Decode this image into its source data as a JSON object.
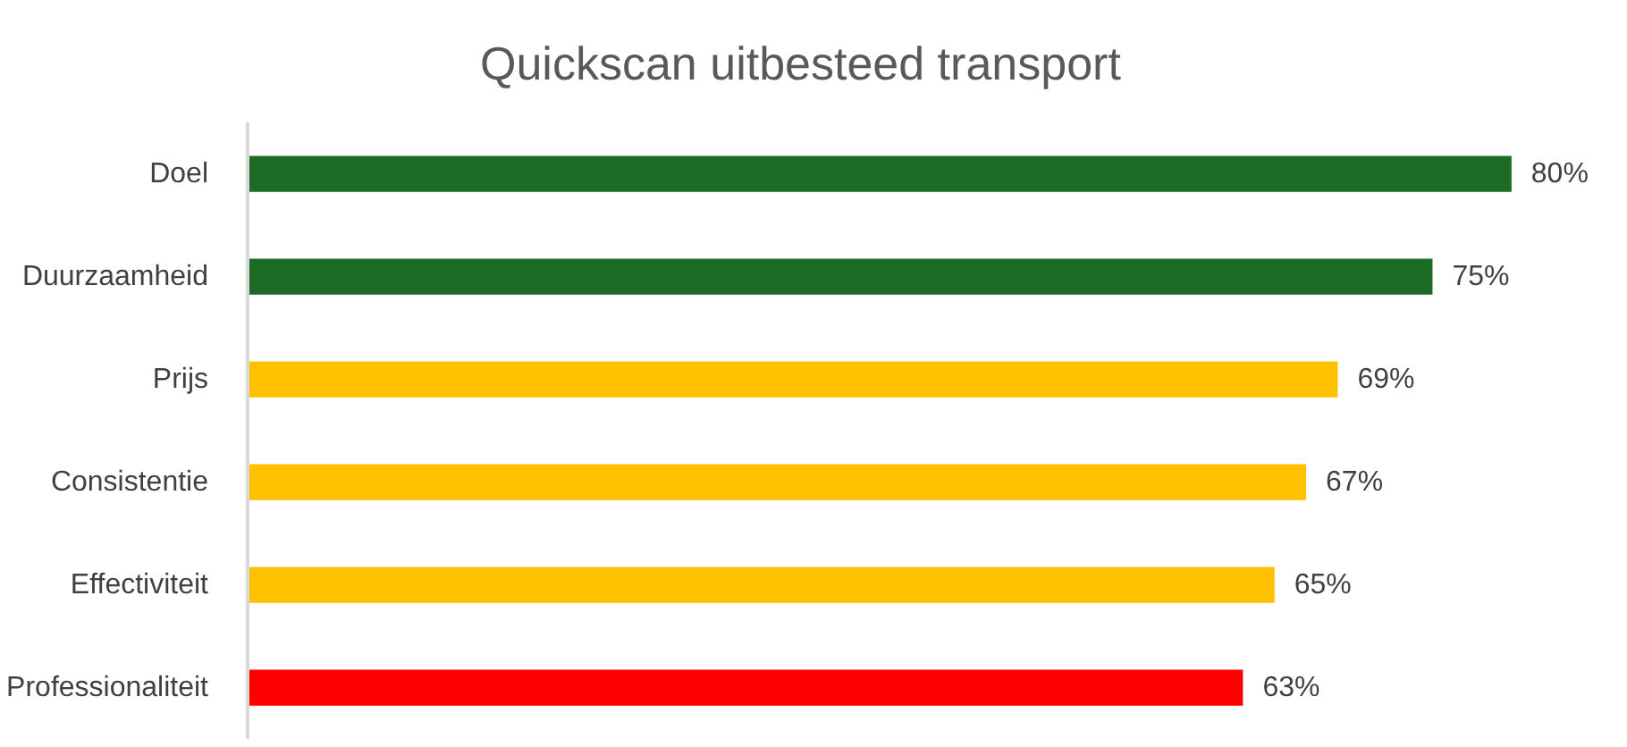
{
  "chart_data": {
    "type": "bar",
    "orientation": "horizontal",
    "title": "Quickscan uitbesteed transport",
    "categories": [
      "Doel",
      "Duurzaamheid",
      "Prijs",
      "Consistentie",
      "Effectiviteit",
      "Professionaliteit"
    ],
    "values": [
      80,
      75,
      69,
      67,
      65,
      63
    ],
    "colors": [
      "#1b6b24",
      "#1b6b24",
      "#ffc000",
      "#ffc000",
      "#ffc000",
      "#ff0000"
    ],
    "value_labels": [
      "80%",
      "75%",
      "69%",
      "67%",
      "65%",
      "63%"
    ],
    "grid": false
  }
}
